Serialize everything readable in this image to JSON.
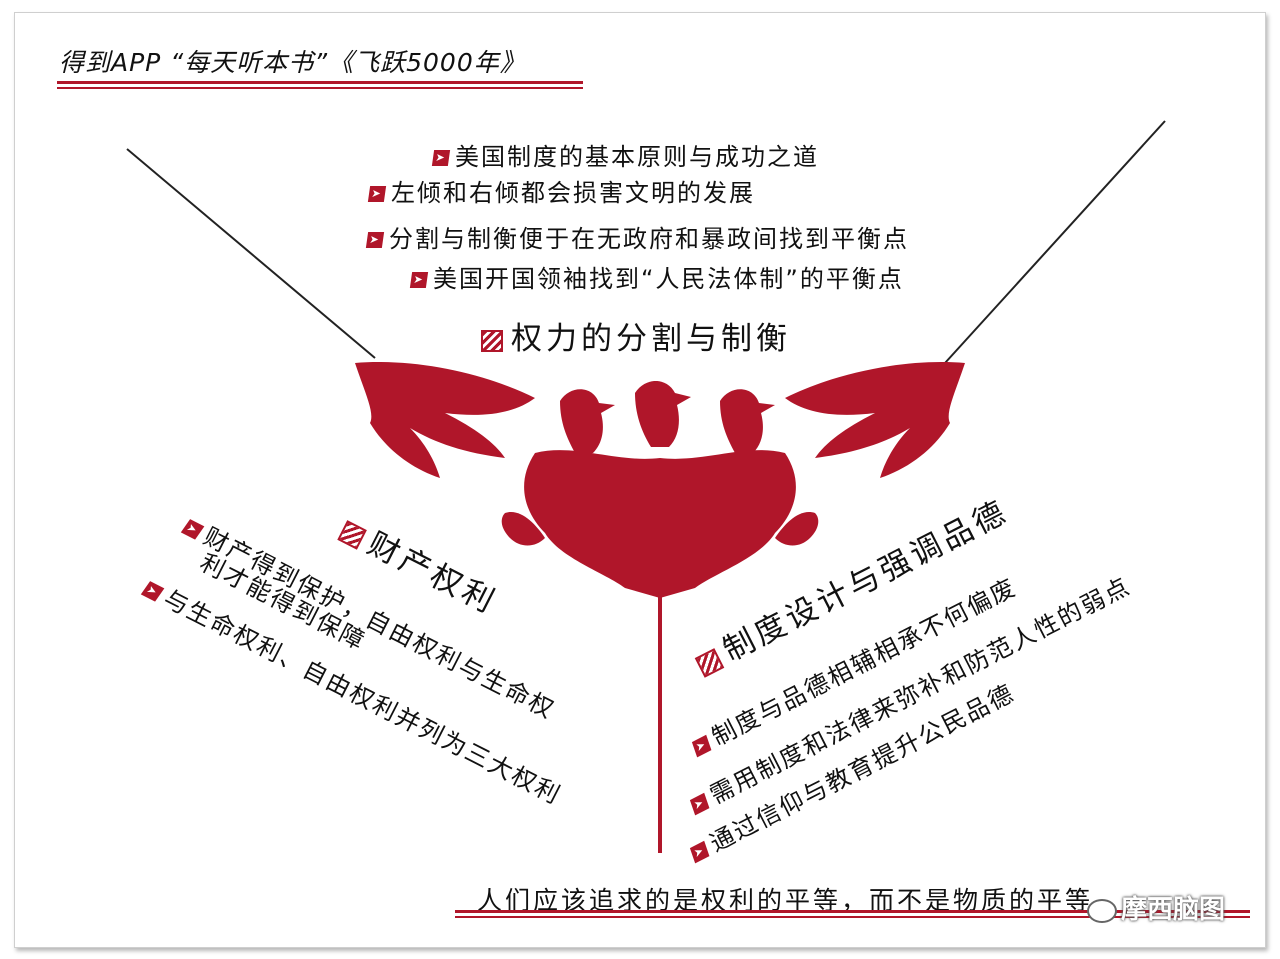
{
  "header": {
    "title": "得到APP “每天听本书”《飞跃5000年》"
  },
  "top_branch": {
    "heading": "权力的分割与制衡",
    "items": [
      "美国制度的基本原则与成功之道",
      "左倾和右倾都会损害文明的发展",
      "分割与制衡便于在无政府和暴政间找到平衡点",
      "美国开国领袖找到“人民法体制”的平衡点"
    ]
  },
  "left_branch": {
    "heading": "财产权利",
    "items": [
      {
        "line1": "财产得到保护，自由权利与生命权",
        "line2": "利才能得到保障"
      },
      {
        "line1": "与生命权利、自由权利并列为三大权利"
      }
    ]
  },
  "right_branch": {
    "heading": "制度设计与强调品德",
    "items": [
      "制度与品德相辅相承不何偏废",
      "需用制度和法律来弥补和防范人性的弱点",
      "通过信仰与教育提升公民品德"
    ]
  },
  "footer": {
    "text": "人们应该追求的是权利的平等，而不是物质的平等"
  },
  "watermark": {
    "text": "摩西脑图"
  },
  "icons": {
    "bullet": "arrow-bullet-icon",
    "heading": "hatched-square-icon",
    "emblem": "double-eagle-emblem-icon"
  },
  "colors": {
    "accent": "#b0162a",
    "text": "#111111"
  }
}
